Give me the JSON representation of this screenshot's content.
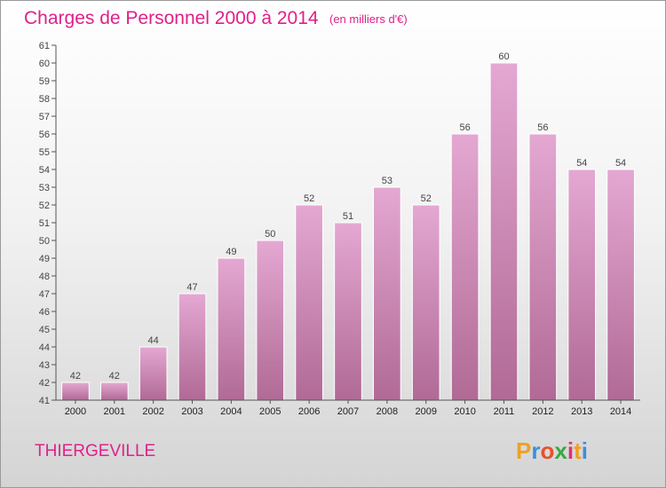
{
  "chart_data": {
    "type": "bar",
    "title": "Charges de Personnel 2000 à 2014",
    "subtitle": "(en milliers d'€)",
    "categories": [
      "2000",
      "2001",
      "2002",
      "2003",
      "2004",
      "2005",
      "2006",
      "2007",
      "2008",
      "2009",
      "2010",
      "2011",
      "2012",
      "2013",
      "2014"
    ],
    "values": [
      42,
      42,
      44,
      47,
      49,
      50,
      52,
      51,
      53,
      52,
      56,
      60,
      56,
      54,
      54
    ],
    "ylim": [
      41,
      61
    ],
    "yticks": [
      41,
      42,
      43,
      44,
      45,
      46,
      47,
      48,
      49,
      50,
      51,
      52,
      53,
      54,
      55,
      56,
      57,
      58,
      59,
      60,
      61
    ],
    "xlabel": "",
    "ylabel": "",
    "grid": false,
    "bar_color_top": "#e4a8d2",
    "bar_color_bottom": "#b06a95"
  },
  "footer": {
    "commune": "THIERGEVILLE",
    "logo_letters": [
      "P",
      "r",
      "o",
      "x",
      "i",
      "t",
      "i"
    ],
    "logo_colors": [
      "#f0a020",
      "#3c8fd8",
      "#e8502a",
      "#3aa845",
      "#e03070",
      "#f0a020",
      "#3c8fd8"
    ]
  },
  "colors": {
    "title": "#e0208a",
    "axis": "#555555"
  }
}
